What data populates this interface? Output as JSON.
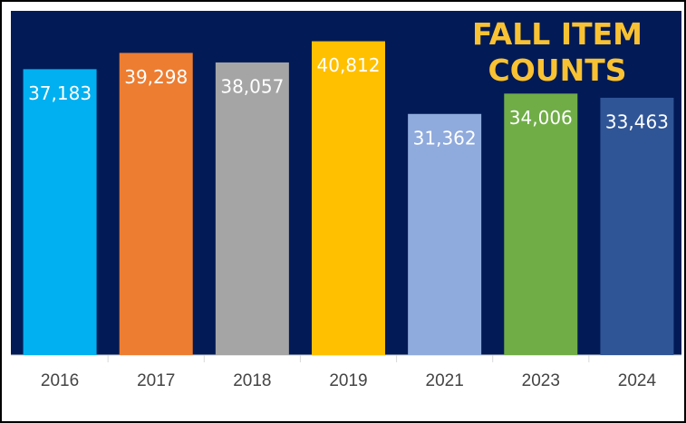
{
  "chart_data": {
    "type": "bar",
    "title": "FALL ITEM COUNTS",
    "categories": [
      "2016",
      "2017",
      "2018",
      "2019",
      "2021",
      "2023",
      "2024"
    ],
    "values": [
      37183,
      39298,
      38057,
      40812,
      31362,
      34006,
      33463
    ],
    "value_labels": [
      "37,183",
      "39,298",
      "38,057",
      "40,812",
      "31,362",
      "34,006",
      "33,463"
    ],
    "colors": [
      "#00b0f0",
      "#ed7d31",
      "#a5a5a5",
      "#ffc000",
      "#8faadc",
      "#70ad47",
      "#2f5597"
    ],
    "background": "#021a56",
    "ylim": [
      0,
      45000
    ]
  }
}
